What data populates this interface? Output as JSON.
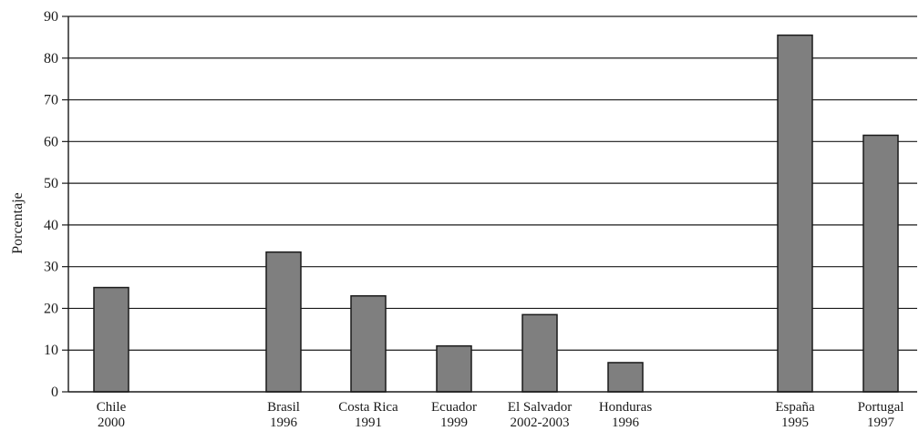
{
  "chart_data": {
    "type": "bar",
    "categories": [
      [
        "Chile",
        "2000"
      ],
      [
        "Brasil",
        "1996"
      ],
      [
        "Costa Rica",
        "1991"
      ],
      [
        "Ecuador",
        "1999"
      ],
      [
        "El Salvador",
        "2002-2003"
      ],
      [
        "Honduras",
        "1996"
      ],
      [
        "España",
        "1995"
      ],
      [
        "Portugal",
        "1997"
      ]
    ],
    "values": [
      25,
      33.5,
      23,
      11,
      18.5,
      7,
      85.5,
      61.5
    ],
    "title": "",
    "xlabel": "",
    "ylabel": "Porcentaje",
    "ylim": [
      0,
      90
    ],
    "yticks": [
      0,
      10,
      20,
      30,
      40,
      50,
      60,
      70,
      80,
      90
    ],
    "grid": "horizontal",
    "colors": {
      "bar_fill": "#7f7f7f",
      "bar_stroke": "#1a1a1a",
      "grid": "#1a1a1a",
      "axis": "#1a1a1a",
      "text": "#1a1a1a"
    }
  }
}
